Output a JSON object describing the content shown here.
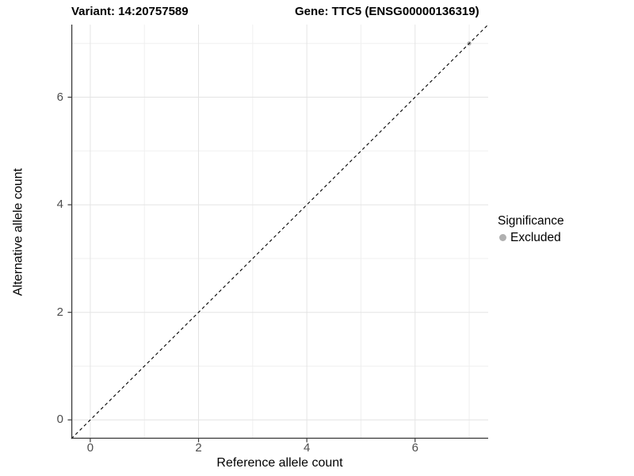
{
  "chart_data": {
    "type": "scatter",
    "titles": {
      "left": "Variant: 14:20757589",
      "right": "Gene: TTC5 (ENSG00000136319)"
    },
    "xlabel": "Reference allele count",
    "ylabel": "Alternative allele count",
    "xlim": [
      -0.35,
      7.35
    ],
    "ylim": [
      -0.35,
      7.35
    ],
    "x_ticks": [
      0,
      2,
      4,
      6
    ],
    "y_ticks": [
      0,
      2,
      4,
      6
    ],
    "x_minor_gridlines": [
      1,
      3,
      5,
      7
    ],
    "y_minor_gridlines": [
      1,
      3,
      5,
      7
    ],
    "grid": "on",
    "identity_line": {
      "style": "dashed",
      "equation": "y = x",
      "from": [
        -0.35,
        -0.35
      ],
      "to": [
        7.35,
        7.35
      ],
      "color": "#000000"
    },
    "series": [
      {
        "name": "Excluded",
        "color": "#b0b0b0",
        "points": [
          [
            7,
            7
          ]
        ]
      }
    ],
    "legend": {
      "title": "Significance",
      "position": "right",
      "items": [
        {
          "label": "Excluded",
          "color": "#b0b0b0"
        }
      ]
    },
    "style": {
      "grid_major_color": "#e4e4e4",
      "grid_minor_color": "#f0f0f0",
      "axis_line_color": "#3a3a3a",
      "tick_label_color": "#4d4d4d",
      "title_color": "#000000",
      "panel_background": "#ffffff"
    }
  }
}
